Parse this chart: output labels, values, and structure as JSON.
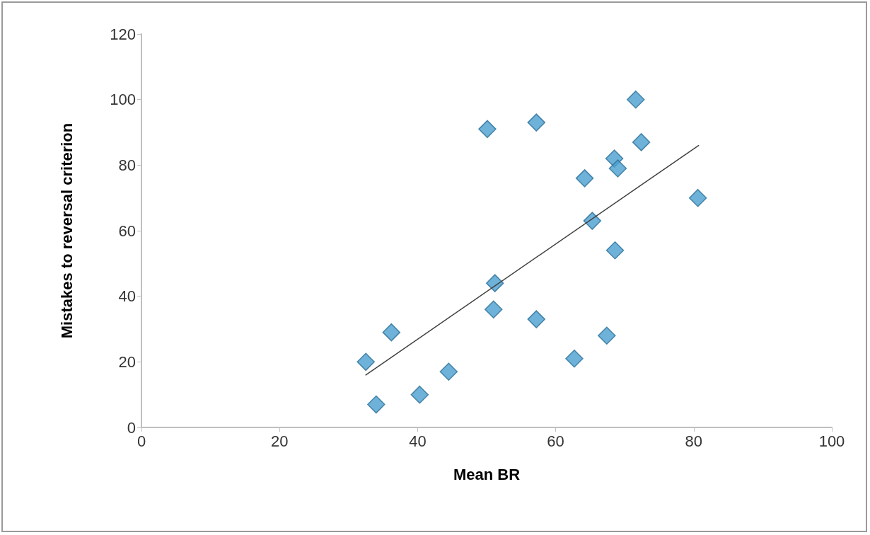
{
  "chart_data": {
    "type": "scatter",
    "xlabel": "Mean BR",
    "ylabel": "Mistakes to reversal criterion",
    "xlim": [
      0,
      100
    ],
    "xticks": [
      0,
      20,
      40,
      60,
      80,
      100
    ],
    "ylim": [
      0,
      120
    ],
    "yticks": [
      0,
      20,
      40,
      60,
      80,
      100,
      120
    ],
    "grid": false,
    "marker": "diamond",
    "series": [
      {
        "color": "#4a9fd0",
        "x": [
          32.5,
          34,
          36.2,
          40.3,
          44.5,
          50.1,
          51,
          51.2,
          57.2,
          57.2,
          62.7,
          64.2,
          65.3,
          67.4,
          68.5,
          68.6,
          69,
          71.6,
          72.4,
          80.6
        ],
        "values": [
          20,
          7,
          29,
          10,
          17,
          91,
          36,
          44,
          93,
          33,
          21,
          76,
          63,
          28,
          82,
          54,
          79,
          100,
          87,
          70
        ]
      },
      {
        "type": "line",
        "color": "#404040",
        "marker": "none",
        "x": [
          32.5,
          80.7
        ],
        "values": [
          16,
          86
        ]
      }
    ]
  }
}
